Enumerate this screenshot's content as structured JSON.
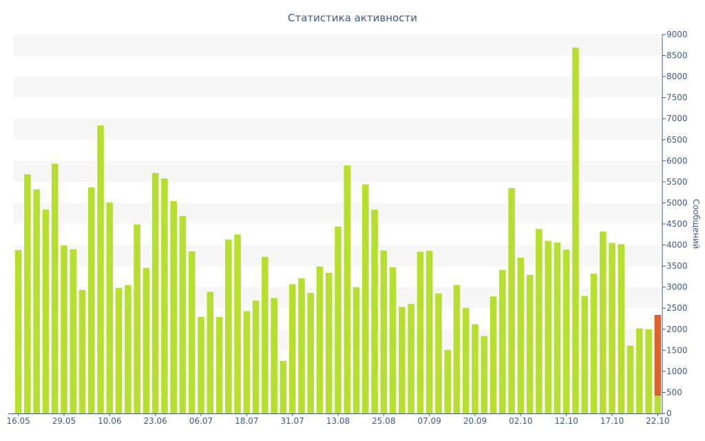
{
  "chart_data": {
    "type": "bar",
    "title": "Статистика активности",
    "xlabel": "",
    "ylabel": "Сообщений",
    "ylim": [
      0,
      9000
    ],
    "yticks": [
      0,
      500,
      1000,
      1500,
      2000,
      2500,
      3000,
      3500,
      4000,
      4500,
      5000,
      5500,
      6000,
      6500,
      7000,
      7500,
      8000,
      8500,
      9000
    ],
    "y_axis_position": "right",
    "grid": "horizontal alternating bands",
    "legend": "none",
    "x_tick_labels": [
      {
        "label": "16.05",
        "index": 0
      },
      {
        "label": "29.05",
        "index": 5
      },
      {
        "label": "10.06",
        "index": 10
      },
      {
        "label": "23.06",
        "index": 15
      },
      {
        "label": "06.07",
        "index": 20
      },
      {
        "label": "18.07",
        "index": 25
      },
      {
        "label": "31.07",
        "index": 30
      },
      {
        "label": "13.08",
        "index": 35
      },
      {
        "label": "25.08",
        "index": 40
      },
      {
        "label": "07.09",
        "index": 45
      },
      {
        "label": "20.09",
        "index": 50
      },
      {
        "label": "02.10",
        "index": 55
      },
      {
        "label": "12.10",
        "index": 60
      },
      {
        "label": "17.10",
        "index": 65
      },
      {
        "label": "22.10",
        "index": 70
      }
    ],
    "values": [
      3880,
      5680,
      5320,
      4840,
      5930,
      3990,
      3900,
      2930,
      5370,
      6840,
      5010,
      2980,
      3050,
      4490,
      3460,
      5710,
      5580,
      5040,
      4690,
      3850,
      2290,
      2890,
      2290,
      4130,
      4250,
      2430,
      2680,
      3720,
      2740,
      1250,
      3070,
      3210,
      2860,
      3490,
      3340,
      4440,
      5890,
      3000,
      5440,
      4840,
      3870,
      3470,
      2530,
      2600,
      3840,
      3860,
      2850,
      1510,
      3050,
      2510,
      2120,
      1840,
      2780,
      3410,
      5350,
      3700,
      3290,
      4380,
      4100,
      4060,
      3890,
      8690,
      2790,
      3320,
      4320,
      4050,
      4020,
      1610,
      2020,
      2000,
      420
    ],
    "current_day_extra": 1920,
    "colors": {
      "bar": "#b5e02f",
      "current_day_extra": "#e0622a",
      "band": "#f7f7f7",
      "axis": "#3e5a8a"
    }
  }
}
